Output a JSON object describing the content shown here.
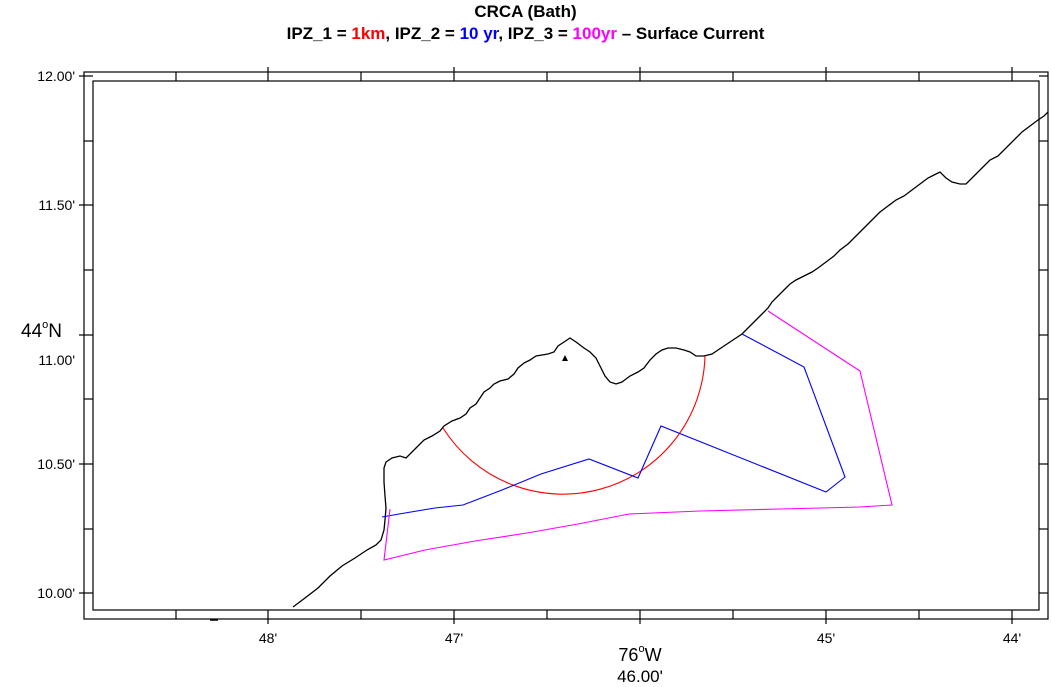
{
  "title": "CRCA (Bath)",
  "subtitle": {
    "parts": [
      {
        "text": "IPZ_1 = ",
        "color": "#000000"
      },
      {
        "text": "1km",
        "color": "#ff0000"
      },
      {
        "text": ", IPZ_2 = ",
        "color": "#000000"
      },
      {
        "text": "10 yr",
        "color": "#0000ff"
      },
      {
        "text": ", IPZ_3 = ",
        "color": "#000000"
      },
      {
        "text": "100yr",
        "color": "#ff00ff"
      },
      {
        "text": " – Surface Current",
        "color": "#000000"
      }
    ]
  },
  "axes": {
    "y_ticks": [
      "12.00'",
      "11.50'",
      "11.00'",
      "10.50'",
      "10.00'"
    ],
    "y_degree_label": "44",
    "y_degree_hemisphere": "N",
    "x_ticks": [
      "48'",
      "47'",
      "46.00'",
      "45'",
      "44'"
    ],
    "x_degree_label": "76",
    "x_degree_hemisphere": "W",
    "degree_symbol": "o"
  },
  "colors": {
    "coastline": "#000000",
    "ipz1": "#ff0000",
    "ipz2": "#0000ff",
    "ipz3": "#ff00ff"
  },
  "features": {
    "intake_marker": "triangle-icon"
  }
}
